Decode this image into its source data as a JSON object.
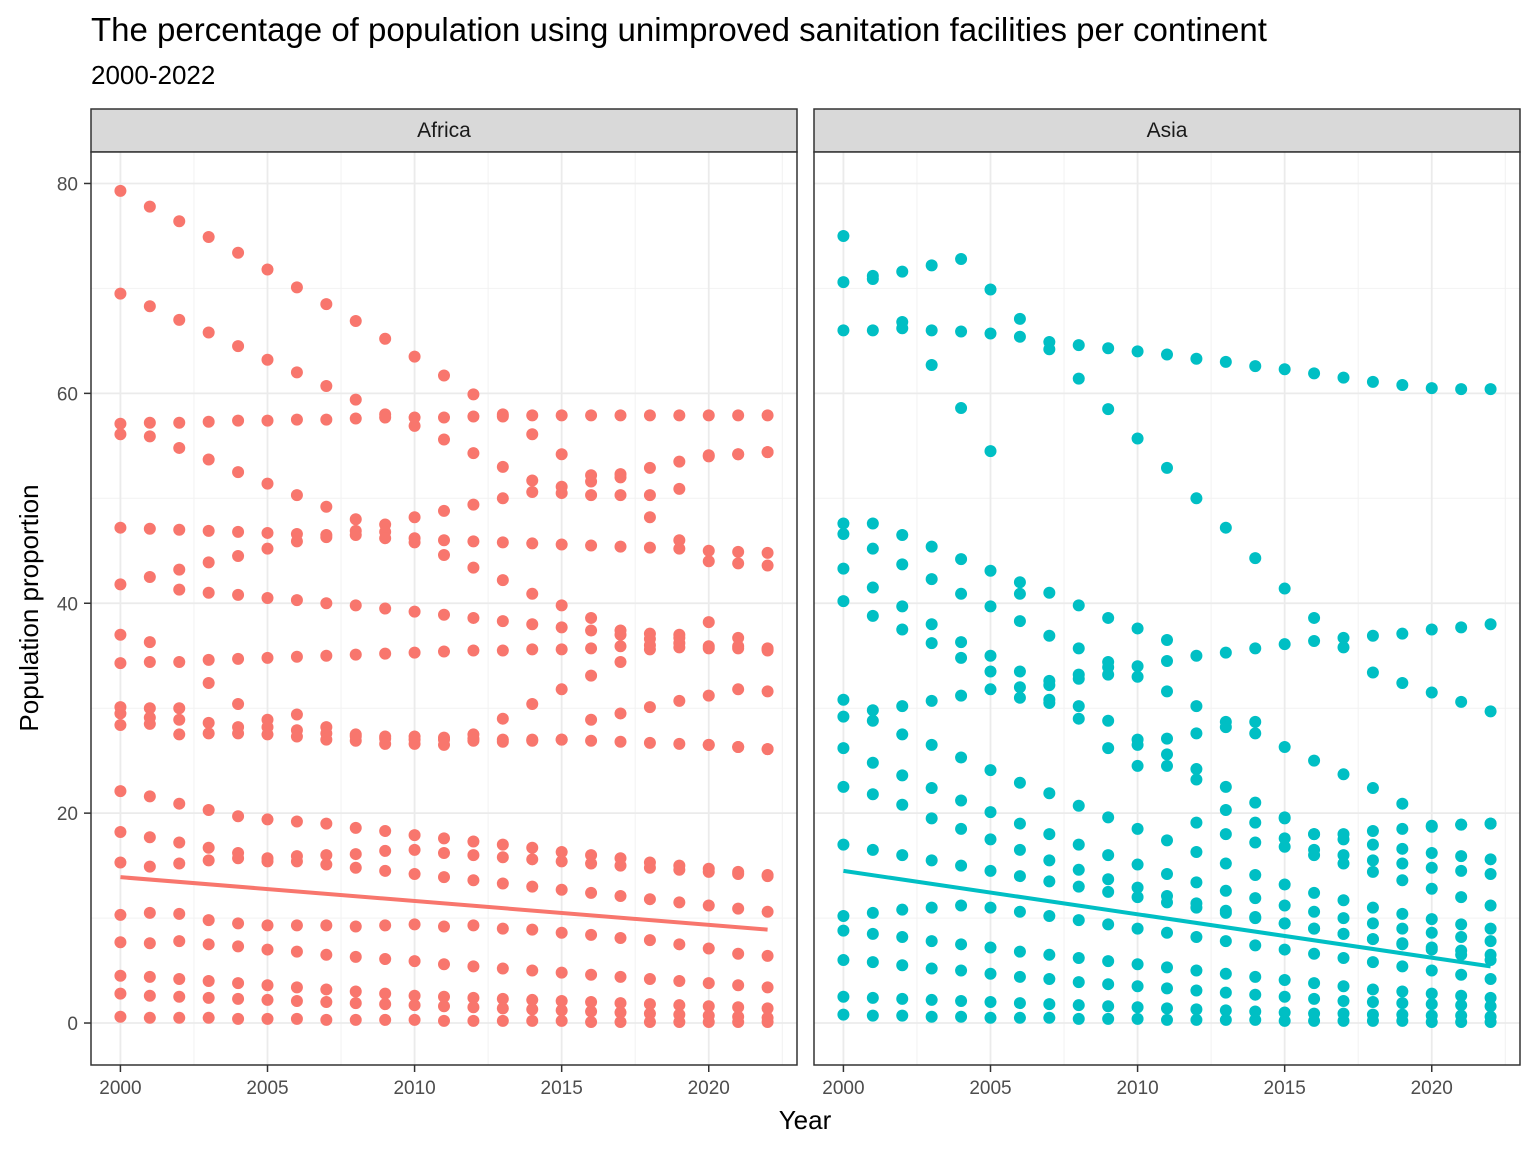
{
  "chart_data": {
    "type": "scatter",
    "title": "The percentage of population using unimproved sanitation facilities per continent",
    "subtitle": "2000-2022",
    "xlabel": "Year",
    "ylabel": "Population proportion",
    "xlim": [
      1999,
      2023
    ],
    "ylim": [
      -4,
      83
    ],
    "x_ticks": [
      2000,
      2005,
      2010,
      2015,
      2020
    ],
    "y_ticks": [
      0,
      20,
      40,
      60,
      80
    ],
    "grid": true,
    "legend": "none",
    "years": [
      2000,
      2001,
      2002,
      2003,
      2004,
      2005,
      2006,
      2007,
      2008,
      2009,
      2010,
      2011,
      2012,
      2013,
      2014,
      2015,
      2016,
      2017,
      2018,
      2019,
      2020,
      2021,
      2022
    ],
    "panels": [
      {
        "name": "Africa",
        "color": "#F8766D",
        "trend": {
          "x": [
            2000,
            2022
          ],
          "y": [
            13.9,
            8.9
          ]
        },
        "series": [
          [
            79.3,
            77.8,
            76.4,
            74.9,
            73.4,
            71.8,
            70.1,
            68.5,
            66.9,
            65.2,
            63.5,
            61.7,
            59.9,
            58.0,
            57.9,
            57.9,
            57.9,
            57.9,
            57.9,
            57.9,
            57.9,
            57.9,
            57.9
          ],
          [
            69.5,
            68.3,
            67.0,
            65.8,
            64.5,
            63.2,
            62.0,
            60.7,
            59.4,
            58.0,
            56.9,
            55.6,
            54.3,
            53.0,
            51.7,
            50.5,
            50.3,
            50.3,
            50.3,
            50.9,
            54.1,
            54.2,
            54.4
          ],
          [
            57.1,
            57.2,
            57.2,
            57.3,
            57.4,
            57.4,
            57.5,
            57.5,
            57.6,
            57.7,
            57.7,
            57.7,
            57.8,
            57.8,
            56.1,
            54.2,
            52.2,
            52.3,
            52.9,
            53.5,
            54.0,
            54.2,
            54.4
          ],
          [
            56.1,
            55.9,
            54.8,
            53.7,
            52.5,
            51.4,
            50.3,
            49.2,
            48.0,
            47.5,
            48.2,
            48.8,
            49.4,
            50.0,
            50.6,
            51.1,
            51.6,
            52.0,
            48.2,
            46.0,
            44.0,
            43.8,
            43.6
          ],
          [
            47.2,
            47.1,
            47.0,
            46.9,
            46.8,
            46.7,
            46.6,
            46.5,
            46.9,
            46.8,
            46.2,
            46.0,
            45.9,
            45.8,
            45.7,
            45.6,
            45.5,
            45.4,
            45.3,
            45.2,
            45.0,
            44.9,
            44.8
          ],
          [
            41.8,
            42.5,
            43.2,
            43.9,
            44.5,
            45.2,
            45.9,
            46.3,
            46.5,
            46.2,
            45.8,
            44.6,
            43.4,
            42.2,
            40.9,
            39.8,
            38.6,
            37.4,
            37.1,
            37.0,
            38.2,
            36.7,
            35.7
          ],
          [
            37.0,
            36.3,
            41.3,
            41.0,
            40.8,
            40.5,
            40.3,
            40.0,
            39.8,
            39.5,
            39.2,
            38.9,
            38.6,
            38.3,
            38.0,
            37.7,
            37.4,
            37.0,
            36.6,
            36.2,
            35.9,
            35.7,
            35.6
          ],
          [
            34.3,
            34.4,
            34.4,
            34.6,
            34.7,
            34.8,
            34.9,
            35.0,
            35.1,
            35.2,
            35.3,
            35.4,
            35.5,
            35.5,
            35.6,
            35.6,
            35.7,
            35.9,
            36.0,
            35.8,
            35.7,
            35.9,
            35.5
          ],
          [
            30.1,
            30.0,
            30.0,
            32.4,
            30.4,
            28.9,
            29.4,
            28.2,
            27.5,
            27.3,
            27.3,
            27.2,
            27.5,
            29.0,
            30.4,
            31.8,
            33.1,
            34.4,
            35.6,
            36.7,
            31.2,
            31.8,
            31.6
          ],
          [
            29.5,
            29.1,
            28.9,
            28.6,
            28.2,
            28.2,
            27.9,
            27.6,
            27.3,
            27.1,
            27.0,
            27.0,
            27.1,
            27.0,
            27.0,
            27.0,
            28.9,
            29.5,
            30.1,
            30.7,
            26.5,
            26.3,
            26.1
          ],
          [
            28.4,
            28.5,
            27.5,
            27.6,
            27.6,
            27.5,
            27.3,
            27.0,
            26.9,
            26.6,
            26.6,
            26.5,
            26.9,
            26.8,
            26.9,
            27.0,
            26.9,
            26.8,
            26.7,
            26.6,
            26.5,
            26.3,
            26.1
          ],
          [
            22.1,
            21.6,
            20.9,
            20.3,
            19.7,
            19.4,
            19.2,
            19.0,
            18.6,
            18.3,
            17.9,
            17.6,
            17.3,
            17.0,
            16.7,
            16.3,
            16.0,
            15.7,
            15.3,
            15.0,
            14.7,
            14.4,
            14.1
          ],
          [
            18.2,
            17.7,
            17.2,
            16.7,
            16.2,
            15.7,
            15.4,
            15.1,
            14.8,
            14.5,
            14.2,
            13.9,
            13.6,
            13.3,
            13.0,
            12.7,
            12.4,
            12.1,
            11.8,
            11.5,
            11.2,
            10.9,
            10.6
          ],
          [
            15.3,
            14.9,
            15.2,
            15.5,
            15.7,
            15.4,
            15.9,
            16.0,
            16.1,
            16.4,
            16.5,
            16.2,
            16.0,
            15.8,
            15.6,
            15.4,
            15.2,
            15.0,
            14.8,
            14.6,
            14.4,
            14.2,
            14.0
          ],
          [
            10.3,
            10.5,
            10.4,
            9.8,
            9.5,
            9.3,
            9.3,
            9.3,
            9.2,
            9.3,
            9.4,
            9.2,
            9.3,
            9.0,
            8.9,
            8.6,
            8.4,
            8.1,
            7.9,
            7.5,
            7.1,
            6.6,
            6.4
          ],
          [
            7.7,
            7.6,
            7.8,
            7.5,
            7.3,
            7.0,
            6.8,
            6.5,
            6.3,
            6.1,
            5.9,
            5.6,
            5.4,
            5.2,
            5.0,
            4.8,
            4.6,
            4.4,
            4.2,
            4.0,
            3.8,
            3.6,
            3.4
          ],
          [
            4.5,
            4.4,
            4.2,
            4.0,
            3.8,
            3.6,
            3.4,
            3.2,
            3.0,
            2.8,
            2.6,
            2.5,
            2.4,
            2.3,
            2.2,
            2.1,
            2.0,
            1.9,
            1.8,
            1.7,
            1.6,
            1.5,
            1.4
          ],
          [
            2.8,
            2.6,
            2.5,
            2.4,
            2.3,
            2.2,
            2.1,
            2.0,
            1.9,
            1.8,
            1.7,
            1.6,
            1.5,
            1.4,
            1.3,
            1.2,
            1.1,
            1.0,
            0.9,
            0.8,
            0.7,
            0.6,
            0.5
          ],
          [
            0.6,
            0.5,
            0.5,
            0.5,
            0.4,
            0.4,
            0.4,
            0.3,
            0.3,
            0.3,
            0.3,
            0.2,
            0.2,
            0.2,
            0.2,
            0.2,
            0.1,
            0.1,
            0.1,
            0.1,
            0.1,
            0.1,
            0.1
          ]
        ]
      },
      {
        "name": "Asia",
        "color": "#00BFC4",
        "trend": {
          "x": [
            2000,
            2022
          ],
          "y": [
            14.5,
            5.4
          ]
        },
        "series": [
          [
            75.0,
            71.2,
            71.6,
            72.2,
            72.8,
            69.9,
            67.1,
            64.9,
            64.6,
            64.3,
            64.0,
            63.7,
            63.3,
            63.0,
            62.6,
            62.3,
            61.9,
            61.5,
            61.1,
            60.8,
            60.5,
            60.4,
            60.4
          ],
          [
            70.6,
            70.9,
            66.8,
            66.0,
            65.9,
            65.7,
            65.4,
            64.2,
            61.4,
            58.5,
            55.7,
            52.9,
            50.0,
            47.2,
            44.3,
            41.4,
            38.6,
            36.7,
            36.9,
            37.1,
            37.5,
            37.7,
            38.0
          ],
          [
            66.0,
            66.0,
            66.2,
            62.7,
            58.6,
            54.5,
            42.0,
            41.0,
            39.8,
            38.6,
            37.6,
            36.5,
            35.0,
            35.3,
            35.7,
            36.1,
            36.4,
            35.8,
            33.4,
            32.4,
            31.5,
            30.6,
            29.7
          ],
          [
            47.6,
            47.6,
            46.5,
            45.4,
            44.2,
            43.1,
            40.9,
            36.9,
            35.7,
            34.4,
            34.0,
            34.5,
            30.2,
            28.7,
            28.7,
            26.3,
            25.0,
            23.7,
            22.4,
            20.9,
            18.8,
            18.9,
            19.0
          ],
          [
            46.6,
            45.2,
            43.7,
            42.3,
            40.9,
            39.7,
            38.3,
            32.6,
            33.2,
            33.9,
            33.0,
            31.6,
            27.6,
            28.2,
            27.6,
            19.6,
            18.0,
            18.0,
            18.3,
            18.5,
            18.7,
            18.9,
            19.0
          ],
          [
            43.3,
            41.5,
            39.7,
            38.0,
            36.3,
            35.0,
            33.5,
            32.2,
            32.8,
            33.2,
            27.0,
            27.1,
            24.2,
            22.5,
            21.0,
            19.5,
            18.0,
            17.5,
            17.0,
            16.6,
            16.2,
            15.9,
            15.6
          ],
          [
            40.2,
            38.8,
            37.5,
            36.2,
            34.8,
            33.5,
            32.0,
            30.8,
            29.0,
            28.8,
            26.5,
            25.6,
            23.2,
            20.3,
            19.1,
            17.6,
            16.5,
            16.0,
            15.5,
            15.2,
            14.8,
            14.5,
            14.2
          ],
          [
            30.8,
            29.8,
            30.2,
            30.7,
            31.2,
            31.8,
            31.0,
            30.5,
            30.2,
            26.2,
            24.5,
            24.5,
            19.1,
            18.0,
            17.2,
            16.8,
            16.0,
            15.2,
            14.4,
            13.6,
            12.8,
            12.0,
            11.2
          ],
          [
            29.2,
            28.8,
            27.5,
            26.5,
            25.3,
            24.1,
            22.9,
            21.9,
            20.7,
            19.6,
            18.5,
            17.4,
            16.3,
            15.2,
            14.1,
            13.2,
            12.4,
            11.7,
            11.0,
            10.4,
            9.9,
            9.4,
            9.0
          ],
          [
            26.2,
            24.8,
            23.6,
            22.4,
            21.2,
            20.1,
            19.0,
            18.0,
            17.0,
            16.0,
            15.1,
            14.2,
            13.4,
            12.6,
            11.9,
            11.2,
            10.6,
            10.0,
            9.5,
            9.0,
            8.6,
            8.2,
            7.8
          ],
          [
            22.5,
            21.8,
            20.8,
            19.5,
            18.5,
            17.5,
            16.5,
            15.5,
            14.6,
            13.7,
            12.9,
            12.1,
            11.4,
            10.7,
            10.1,
            9.5,
            9.0,
            8.5,
            8.0,
            7.6,
            7.2,
            6.9,
            6.5
          ],
          [
            17.0,
            16.5,
            16.0,
            15.5,
            15.0,
            14.5,
            14.0,
            13.5,
            13.0,
            12.5,
            12.0,
            11.5,
            11.0,
            10.5,
            10.0,
            9.5,
            9.0,
            8.5,
            8.0,
            7.5,
            7.0,
            6.5,
            6.0
          ],
          [
            10.2,
            10.5,
            10.8,
            11.0,
            11.2,
            11.0,
            10.6,
            10.2,
            9.8,
            9.4,
            9.0,
            8.6,
            8.2,
            7.8,
            7.4,
            7.0,
            6.6,
            6.2,
            5.8,
            5.4,
            5.0,
            4.6,
            4.2
          ],
          [
            8.8,
            8.5,
            8.2,
            7.8,
            7.5,
            7.2,
            6.8,
            6.5,
            6.2,
            5.9,
            5.6,
            5.3,
            5.0,
            4.7,
            4.4,
            4.1,
            3.8,
            3.5,
            3.2,
            3.0,
            2.8,
            2.6,
            2.4
          ],
          [
            6.0,
            5.8,
            5.5,
            5.2,
            5.0,
            4.7,
            4.4,
            4.2,
            3.9,
            3.7,
            3.5,
            3.3,
            3.1,
            2.9,
            2.7,
            2.5,
            2.3,
            2.1,
            2.0,
            1.9,
            1.8,
            1.7,
            1.6
          ],
          [
            2.5,
            2.4,
            2.3,
            2.2,
            2.1,
            2.0,
            1.9,
            1.8,
            1.7,
            1.6,
            1.5,
            1.4,
            1.3,
            1.2,
            1.1,
            1.0,
            0.9,
            0.9,
            0.8,
            0.8,
            0.7,
            0.7,
            0.6
          ],
          [
            0.8,
            0.7,
            0.7,
            0.6,
            0.6,
            0.5,
            0.5,
            0.5,
            0.4,
            0.4,
            0.4,
            0.3,
            0.3,
            0.3,
            0.3,
            0.2,
            0.2,
            0.2,
            0.2,
            0.2,
            0.1,
            0.1,
            0.1
          ]
        ]
      }
    ]
  }
}
